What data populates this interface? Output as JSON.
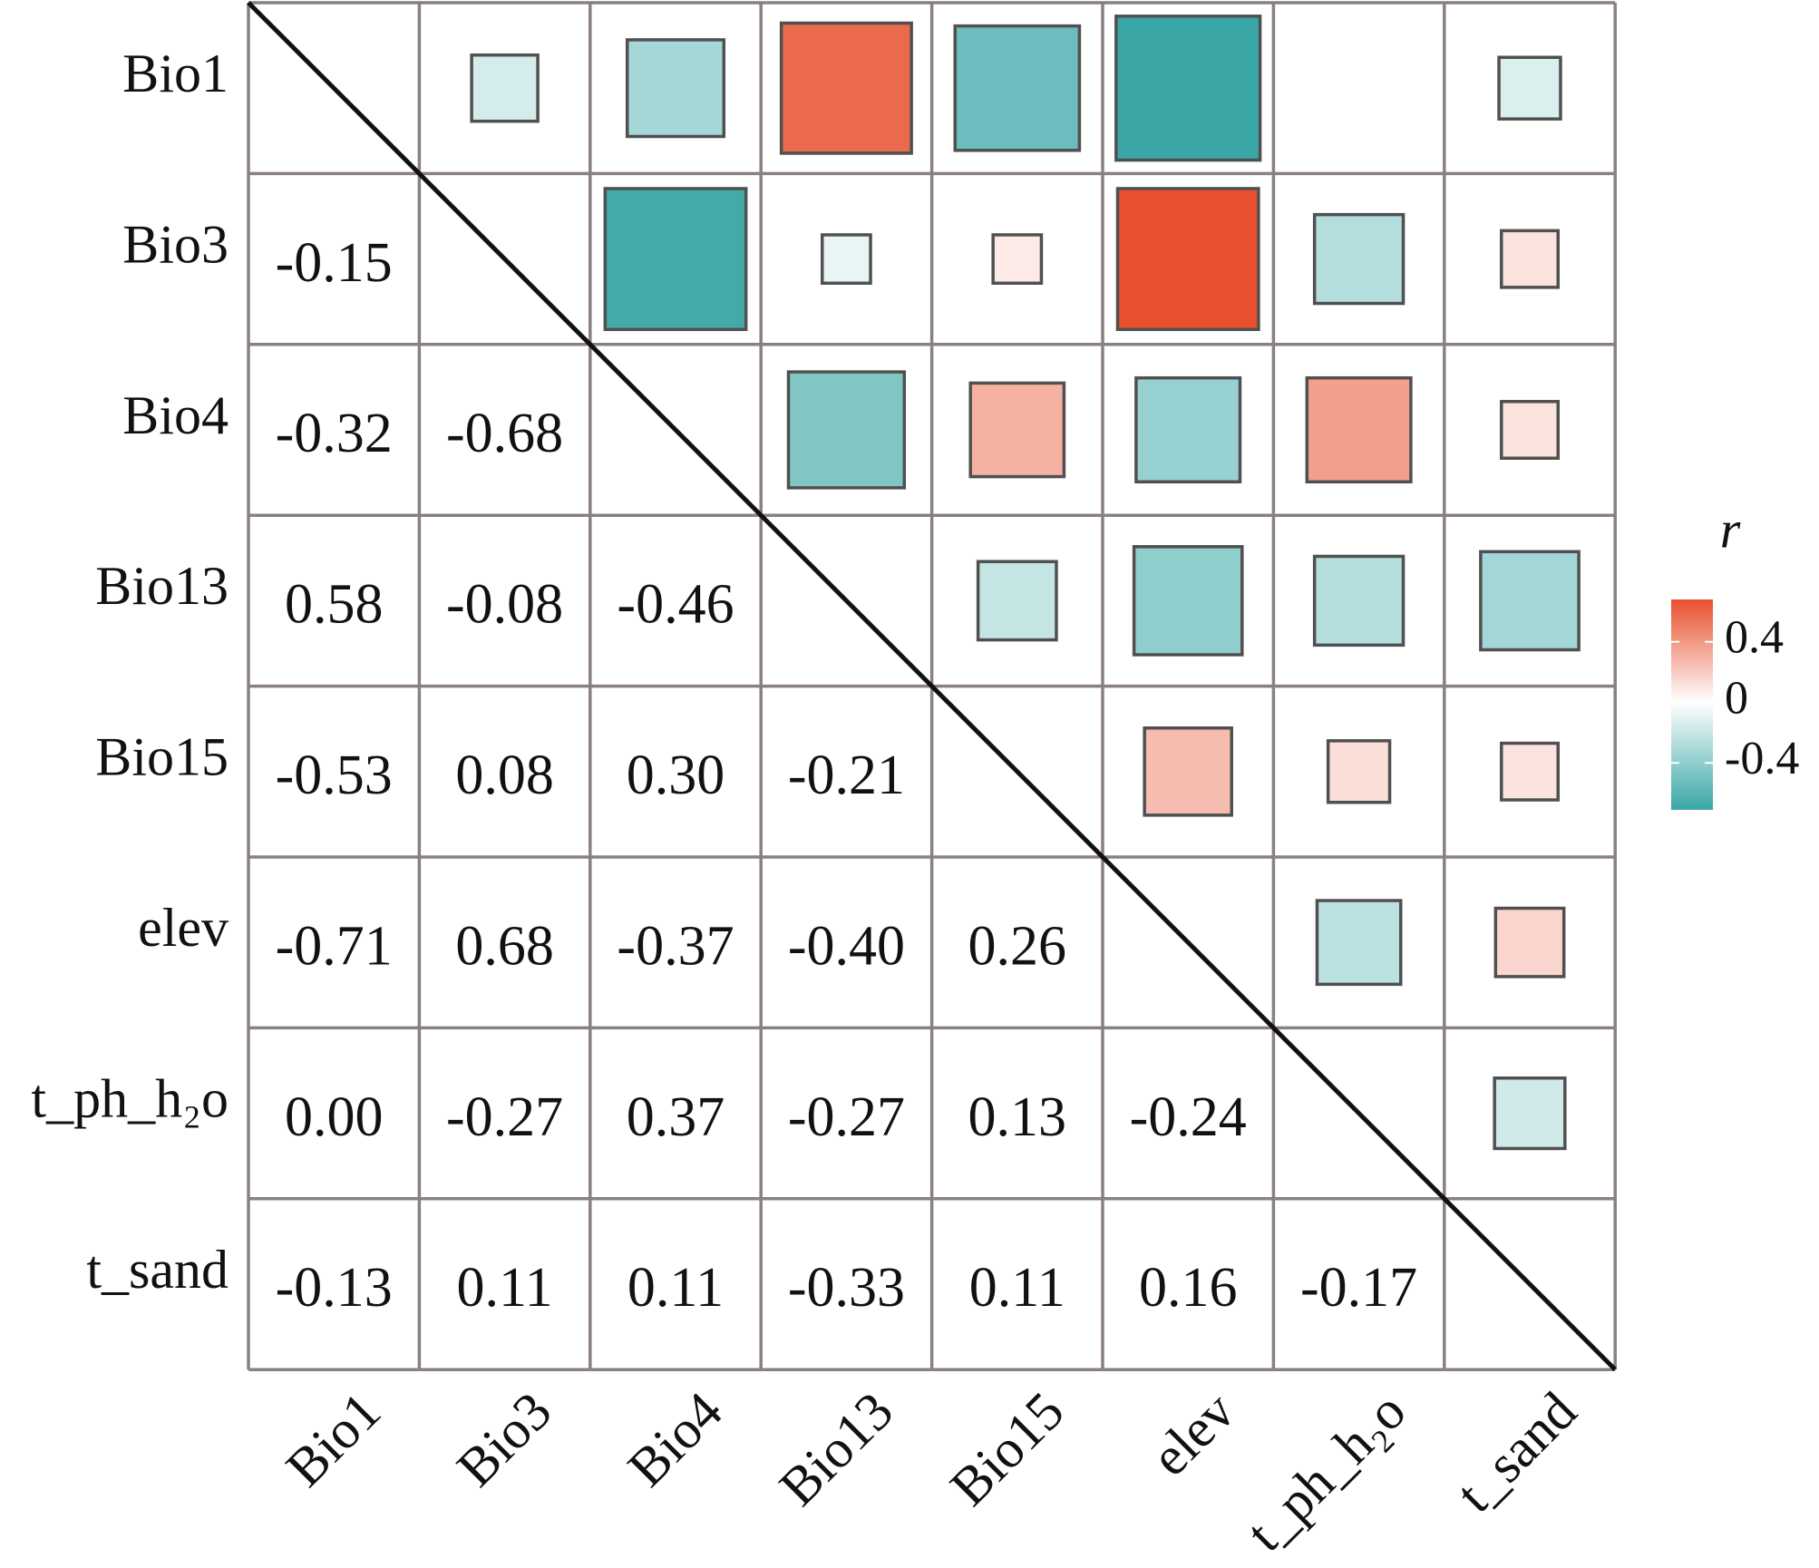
{
  "chart_data": {
    "type": "corrplot",
    "variables": [
      "Bio1",
      "Bio3",
      "Bio4",
      "Bio13",
      "Bio15",
      "elev",
      "t_ph_h₂o",
      "t_sand"
    ],
    "values": [
      [],
      [
        -0.15
      ],
      [
        -0.32,
        -0.68
      ],
      [
        0.58,
        -0.08,
        -0.46
      ],
      [
        -0.53,
        0.08,
        0.3,
        -0.21
      ],
      [
        -0.71,
        0.68,
        -0.37,
        -0.4,
        0.26
      ],
      [
        0,
        -0.27,
        0.37,
        -0.27,
        0.13,
        -0.24
      ],
      [
        -0.13,
        0.11,
        0.11,
        -0.33,
        0.11,
        0.16,
        -0.17
      ]
    ],
    "value_labels": [
      [],
      [
        "-0.15"
      ],
      [
        "-0.32",
        "-0.68"
      ],
      [
        "0.58",
        "-0.08",
        "-0.46"
      ],
      [
        "-0.53",
        "0.08",
        "0.30",
        "-0.21"
      ],
      [
        "-0.71",
        "0.68",
        "-0.37",
        "-0.40",
        "0.26"
      ],
      [
        "0.00",
        "-0.27",
        "0.37",
        "-0.27",
        "0.13",
        "-0.24"
      ],
      [
        "-0.13",
        "0.11",
        "0.11",
        "-0.33",
        "0.11",
        "0.16",
        "-0.17"
      ]
    ],
    "legend_title": "r",
    "clim": [
      -0.71,
      0.68
    ],
    "cticks": [
      0.4,
      0,
      -0.4
    ],
    "colormap": [
      "#3aa7a6",
      "#ffffff",
      "#e8502e"
    ]
  }
}
